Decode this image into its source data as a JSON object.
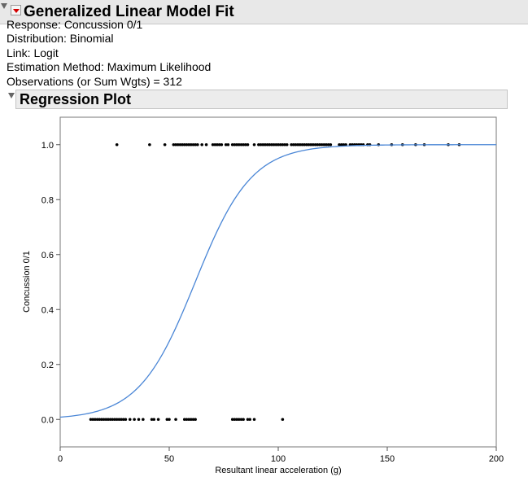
{
  "report": {
    "title": "Generalized Linear Model Fit",
    "summary": {
      "response": "Response: Concussion 0/1",
      "distribution": "Distribution: Binomial",
      "link": "Link: Logit",
      "estimation": "Estimation Method: Maximum Likelihood",
      "observations": "Observations (or Sum Wgts) = 312"
    }
  },
  "regression_plot": {
    "title": "Regression Plot"
  },
  "colors": {
    "curve": "#4a86d6",
    "points": "#000000",
    "disclosure_red": "#d40000"
  },
  "chart_data": {
    "type": "scatter",
    "title": "",
    "xlabel": "Resultant linear acceleration (g)",
    "ylabel": "Concussion 0/1",
    "xlim": [
      0,
      200
    ],
    "ylim": [
      -0.1,
      1.1
    ],
    "x_ticks": [
      "0",
      "50",
      "100",
      "150",
      "200"
    ],
    "y_ticks": [
      "0.0",
      "0.2",
      "0.4",
      "0.6",
      "0.8",
      "1.0"
    ],
    "grid": false,
    "series": [
      {
        "type": "scatter",
        "points": [
          [
            26,
            1
          ],
          [
            41,
            1
          ],
          [
            48,
            1
          ],
          [
            52,
            1
          ],
          [
            53,
            1
          ],
          [
            54,
            1
          ],
          [
            55,
            1
          ],
          [
            56,
            1
          ],
          [
            57,
            1
          ],
          [
            58,
            1
          ],
          [
            59,
            1
          ],
          [
            60,
            1
          ],
          [
            61,
            1
          ],
          [
            62,
            1
          ],
          [
            63,
            1
          ],
          [
            65,
            1
          ],
          [
            67,
            1
          ],
          [
            70,
            1
          ],
          [
            71,
            1
          ],
          [
            72,
            1
          ],
          [
            73,
            1
          ],
          [
            74,
            1
          ],
          [
            76,
            1
          ],
          [
            77,
            1
          ],
          [
            79,
            1
          ],
          [
            80,
            1
          ],
          [
            81,
            1
          ],
          [
            82,
            1
          ],
          [
            83,
            1
          ],
          [
            84,
            1
          ],
          [
            85,
            1
          ],
          [
            86,
            1
          ],
          [
            89,
            1
          ],
          [
            91,
            1
          ],
          [
            92,
            1
          ],
          [
            93,
            1
          ],
          [
            94,
            1
          ],
          [
            95,
            1
          ],
          [
            96,
            1
          ],
          [
            97,
            1
          ],
          [
            98,
            1
          ],
          [
            99,
            1
          ],
          [
            100,
            1
          ],
          [
            101,
            1
          ],
          [
            102,
            1
          ],
          [
            103,
            1
          ],
          [
            104,
            1
          ],
          [
            106,
            1
          ],
          [
            107,
            1
          ],
          [
            108,
            1
          ],
          [
            109,
            1
          ],
          [
            110,
            1
          ],
          [
            111,
            1
          ],
          [
            112,
            1
          ],
          [
            113,
            1
          ],
          [
            114,
            1
          ],
          [
            115,
            1
          ],
          [
            116,
            1
          ],
          [
            117,
            1
          ],
          [
            118,
            1
          ],
          [
            119,
            1
          ],
          [
            120,
            1
          ],
          [
            121,
            1
          ],
          [
            122,
            1
          ],
          [
            123,
            1
          ],
          [
            124,
            1
          ],
          [
            128,
            1
          ],
          [
            129,
            1
          ],
          [
            130,
            1
          ],
          [
            131,
            1
          ],
          [
            133,
            1
          ],
          [
            134,
            1
          ],
          [
            135,
            1
          ],
          [
            136,
            1
          ],
          [
            137,
            1
          ],
          [
            138,
            1
          ],
          [
            139,
            1
          ],
          [
            141,
            1
          ],
          [
            142,
            1
          ],
          [
            146,
            1
          ],
          [
            152,
            1
          ],
          [
            157,
            1
          ],
          [
            163,
            1
          ],
          [
            167,
            1
          ],
          [
            178,
            1
          ],
          [
            183,
            1
          ],
          [
            14,
            0
          ],
          [
            15,
            0
          ],
          [
            16,
            0
          ],
          [
            17,
            0
          ],
          [
            18,
            0
          ],
          [
            19,
            0
          ],
          [
            20,
            0
          ],
          [
            21,
            0
          ],
          [
            22,
            0
          ],
          [
            23,
            0
          ],
          [
            24,
            0
          ],
          [
            25,
            0
          ],
          [
            26,
            0
          ],
          [
            27,
            0
          ],
          [
            28,
            0
          ],
          [
            29,
            0
          ],
          [
            30,
            0
          ],
          [
            32,
            0
          ],
          [
            34,
            0
          ],
          [
            36,
            0
          ],
          [
            38,
            0
          ],
          [
            42,
            0
          ],
          [
            43,
            0
          ],
          [
            45,
            0
          ],
          [
            49,
            0
          ],
          [
            50,
            0
          ],
          [
            53,
            0
          ],
          [
            57,
            0
          ],
          [
            58,
            0
          ],
          [
            59,
            0
          ],
          [
            60,
            0
          ],
          [
            61,
            0
          ],
          [
            62,
            0
          ],
          [
            79,
            0
          ],
          [
            80,
            0
          ],
          [
            81,
            0
          ],
          [
            82,
            0
          ],
          [
            83,
            0
          ],
          [
            84,
            0
          ],
          [
            86,
            0
          ],
          [
            87,
            0
          ],
          [
            89,
            0
          ],
          [
            102,
            0
          ]
        ]
      },
      {
        "type": "line",
        "name": "",
        "logistic": {
          "b0": -4.8,
          "b1": 0.0775
        }
      }
    ]
  }
}
